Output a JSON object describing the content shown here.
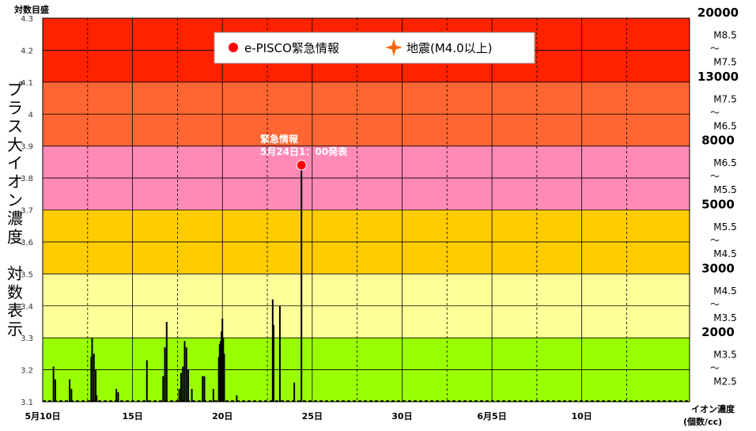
{
  "chart_data": {
    "type": "bar",
    "y_axis_title": "対数目盛",
    "ylim": [
      3.1,
      4.3
    ],
    "y_ticks": [
      "3.1",
      "3.2",
      "3.3",
      "3.4",
      "3.5",
      "3.6",
      "3.7",
      "3.8",
      "3.9",
      "4",
      "4.1",
      "4.2",
      "4.3"
    ],
    "x_range": [
      10,
      46
    ],
    "x_ticks": [
      {
        "x": 10,
        "label": "5月10日"
      },
      {
        "x": 15,
        "label": "15日"
      },
      {
        "x": 20,
        "label": "20日"
      },
      {
        "x": 25,
        "label": "25日"
      },
      {
        "x": 30,
        "label": "30日"
      },
      {
        "x": 35,
        "label": "6月5日"
      },
      {
        "x": 40,
        "label": "10日"
      }
    ],
    "x_axis_title": [
      "イオン濃度",
      "(個数/cc)"
    ],
    "left_vertical_title": [
      "プ",
      "ラ",
      "ス",
      "大",
      "イ",
      "オ",
      "ン",
      "濃",
      "度",
      "",
      "対",
      "数",
      "表",
      "示"
    ],
    "bands": [
      {
        "from": 3.1,
        "to": 3.3,
        "color": "#99ff00"
      },
      {
        "from": 3.3,
        "to": 3.5,
        "color": "#ffff99"
      },
      {
        "from": 3.5,
        "to": 3.7,
        "color": "#ffcc00"
      },
      {
        "from": 3.7,
        "to": 3.9,
        "color": "#ff8ab8"
      },
      {
        "from": 3.9,
        "to": 4.1,
        "color": "#ff6633"
      },
      {
        "from": 4.1,
        "to": 4.3,
        "color": "#ff2200"
      }
    ],
    "right_concentrations": [
      {
        "y": 4.3,
        "label": "20000"
      },
      {
        "y": 4.1,
        "label": "13000"
      },
      {
        "y": 3.9,
        "label": "8000"
      },
      {
        "y": 3.7,
        "label": "5000"
      },
      {
        "y": 3.5,
        "label": "3000"
      },
      {
        "y": 3.3,
        "label": "2000"
      }
    ],
    "magnitude_ranges": [
      {
        "mid": 4.2,
        "top": "M8.5",
        "mark": "～",
        "bottom": "M7.5"
      },
      {
        "mid": 4.0,
        "top": "M7.5",
        "mark": "～",
        "bottom": "M6.5"
      },
      {
        "mid": 3.8,
        "top": "M6.5",
        "mark": "～",
        "bottom": "M5.5"
      },
      {
        "mid": 3.6,
        "top": "M5.5",
        "mark": "～",
        "bottom": "M4.5"
      },
      {
        "mid": 3.4,
        "top": "M4.5",
        "mark": "～",
        "bottom": "M3.5"
      },
      {
        "mid": 3.2,
        "top": "M3.5",
        "mark": "～",
        "bottom": "M2.5"
      }
    ],
    "legend": [
      {
        "label": "e-PISCO緊急情報",
        "marker": "circle",
        "color": "#ff0000"
      },
      {
        "label": "地震(M4.0以上)",
        "marker": "star",
        "color": "#ff6600"
      }
    ],
    "series": [
      {
        "values": [
          {
            "x": 10.6,
            "y": 3.21
          },
          {
            "x": 10.7,
            "y": 3.17
          },
          {
            "x": 11.5,
            "y": 3.17
          },
          {
            "x": 11.6,
            "y": 3.14
          },
          {
            "x": 12.7,
            "y": 3.24
          },
          {
            "x": 12.75,
            "y": 3.3
          },
          {
            "x": 12.85,
            "y": 3.25
          },
          {
            "x": 12.95,
            "y": 3.2
          },
          {
            "x": 13.0,
            "y": 3.12
          },
          {
            "x": 14.1,
            "y": 3.14
          },
          {
            "x": 14.2,
            "y": 3.13
          },
          {
            "x": 15.8,
            "y": 3.23
          },
          {
            "x": 16.7,
            "y": 3.18
          },
          {
            "x": 16.8,
            "y": 3.27
          },
          {
            "x": 16.9,
            "y": 3.35
          },
          {
            "x": 17.6,
            "y": 3.14
          },
          {
            "x": 17.7,
            "y": 3.19
          },
          {
            "x": 17.8,
            "y": 3.21
          },
          {
            "x": 17.9,
            "y": 3.29
          },
          {
            "x": 18.0,
            "y": 3.27
          },
          {
            "x": 18.1,
            "y": 3.2
          },
          {
            "x": 18.3,
            "y": 3.14
          },
          {
            "x": 18.9,
            "y": 3.18
          },
          {
            "x": 19.0,
            "y": 3.18
          },
          {
            "x": 19.5,
            "y": 3.14
          },
          {
            "x": 19.8,
            "y": 3.24
          },
          {
            "x": 19.85,
            "y": 3.28
          },
          {
            "x": 19.9,
            "y": 3.29
          },
          {
            "x": 19.95,
            "y": 3.32
          },
          {
            "x": 20.0,
            "y": 3.36
          },
          {
            "x": 20.05,
            "y": 3.3
          },
          {
            "x": 20.1,
            "y": 3.25
          },
          {
            "x": 20.8,
            "y": 3.12
          },
          {
            "x": 22.8,
            "y": 3.42
          },
          {
            "x": 22.85,
            "y": 3.34
          },
          {
            "x": 23.2,
            "y": 3.4
          },
          {
            "x": 24.0,
            "y": 3.16
          },
          {
            "x": 24.4,
            "y": 3.84
          }
        ]
      }
    ],
    "alert": {
      "x": 24.4,
      "y": 3.84,
      "label_line1": "緊急情報",
      "label_line2": "5月24日1：00発表"
    }
  }
}
